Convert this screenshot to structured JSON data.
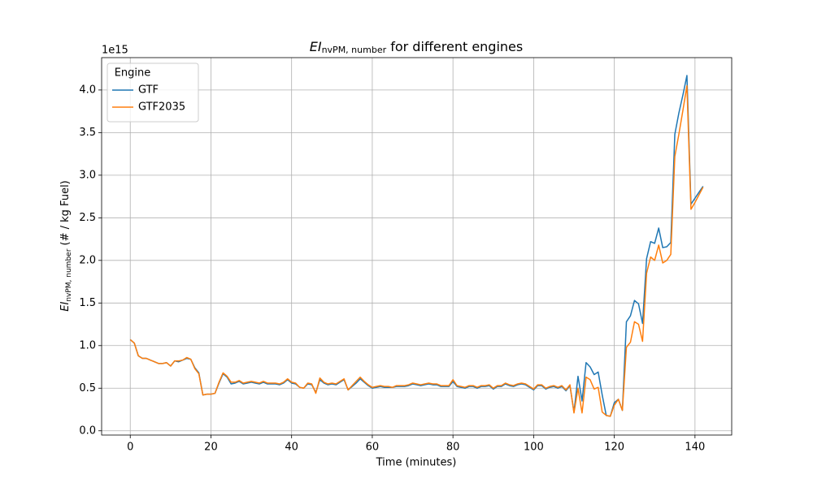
{
  "chart_data": {
    "type": "line",
    "title": {
      "main": "EI",
      "sub": "nvPM, number",
      "rest": " for different engines"
    },
    "ylabel": {
      "main": "EI",
      "sub": "nvPM, number",
      "rest": " (# / kg Fuel)"
    },
    "xlabel": "Time (minutes)",
    "y_offset_label": "1e15",
    "legend_title": "Engine",
    "legend_loc": "upper left",
    "grid": true,
    "x": [
      0,
      1,
      2,
      3,
      4,
      5,
      6,
      7,
      8,
      9,
      10,
      11,
      12,
      13,
      14,
      15,
      16,
      17,
      18,
      19,
      20,
      21,
      22,
      23,
      24,
      25,
      26,
      27,
      28,
      29,
      30,
      31,
      32,
      33,
      34,
      35,
      36,
      37,
      38,
      39,
      40,
      41,
      42,
      43,
      44,
      45,
      46,
      47,
      48,
      49,
      50,
      51,
      52,
      53,
      54,
      55,
      56,
      57,
      58,
      59,
      60,
      61,
      62,
      63,
      64,
      65,
      66,
      67,
      68,
      69,
      70,
      71,
      72,
      73,
      74,
      75,
      76,
      77,
      78,
      79,
      80,
      81,
      82,
      83,
      84,
      85,
      86,
      87,
      88,
      89,
      90,
      91,
      92,
      93,
      94,
      95,
      96,
      97,
      98,
      99,
      100,
      101,
      102,
      103,
      104,
      105,
      106,
      107,
      108,
      109,
      110,
      111,
      112,
      113,
      114,
      115,
      116,
      117,
      118,
      119,
      120,
      121,
      122,
      123,
      124,
      125,
      126,
      127,
      128,
      129,
      130,
      131,
      132,
      133,
      134,
      135,
      136,
      137,
      138,
      139,
      140,
      141,
      142
    ],
    "series": [
      {
        "name": "GTF",
        "color": "#1f77b4",
        "values": [
          1.07,
          1.03,
          0.88,
          0.85,
          0.85,
          0.83,
          0.81,
          0.79,
          0.79,
          0.8,
          0.76,
          0.82,
          0.81,
          0.83,
          0.85,
          0.84,
          0.74,
          0.68,
          0.42,
          0.43,
          0.43,
          0.44,
          0.56,
          0.67,
          0.63,
          0.55,
          0.56,
          0.58,
          0.55,
          0.56,
          0.57,
          0.56,
          0.55,
          0.57,
          0.55,
          0.55,
          0.55,
          0.54,
          0.56,
          0.6,
          0.56,
          0.55,
          0.51,
          0.5,
          0.55,
          0.54,
          0.45,
          0.6,
          0.56,
          0.54,
          0.55,
          0.54,
          0.57,
          0.6,
          0.48,
          0.52,
          0.56,
          0.61,
          0.57,
          0.53,
          0.5,
          0.51,
          0.52,
          0.51,
          0.51,
          0.51,
          0.52,
          0.52,
          0.52,
          0.53,
          0.55,
          0.54,
          0.53,
          0.54,
          0.55,
          0.54,
          0.54,
          0.52,
          0.52,
          0.52,
          0.58,
          0.52,
          0.51,
          0.5,
          0.52,
          0.52,
          0.5,
          0.52,
          0.52,
          0.53,
          0.49,
          0.52,
          0.52,
          0.55,
          0.53,
          0.52,
          0.54,
          0.55,
          0.54,
          0.51,
          0.48,
          0.53,
          0.53,
          0.49,
          0.51,
          0.52,
          0.5,
          0.52,
          0.47,
          0.53,
          0.22,
          0.64,
          0.35,
          0.8,
          0.75,
          0.66,
          0.69,
          0.42,
          0.18,
          0.17,
          0.33,
          0.37,
          0.24,
          1.28,
          1.35,
          1.53,
          1.49,
          1.26,
          2.02,
          2.22,
          2.2,
          2.38,
          2.15,
          2.16,
          2.21,
          3.48,
          3.73,
          3.94,
          4.17,
          2.66,
          2.73,
          2.8,
          2.87
        ]
      },
      {
        "name": "GTF2035",
        "color": "#ff7f0e",
        "values": [
          1.07,
          1.03,
          0.88,
          0.85,
          0.85,
          0.83,
          0.81,
          0.79,
          0.79,
          0.8,
          0.76,
          0.82,
          0.82,
          0.83,
          0.86,
          0.84,
          0.73,
          0.67,
          0.42,
          0.43,
          0.43,
          0.44,
          0.57,
          0.68,
          0.64,
          0.57,
          0.57,
          0.59,
          0.56,
          0.57,
          0.58,
          0.57,
          0.56,
          0.58,
          0.56,
          0.56,
          0.56,
          0.55,
          0.57,
          0.61,
          0.57,
          0.56,
          0.51,
          0.5,
          0.56,
          0.55,
          0.44,
          0.62,
          0.57,
          0.55,
          0.56,
          0.55,
          0.58,
          0.61,
          0.48,
          0.53,
          0.58,
          0.63,
          0.58,
          0.54,
          0.51,
          0.52,
          0.53,
          0.52,
          0.52,
          0.51,
          0.53,
          0.53,
          0.53,
          0.54,
          0.56,
          0.55,
          0.54,
          0.55,
          0.56,
          0.55,
          0.55,
          0.53,
          0.53,
          0.53,
          0.6,
          0.53,
          0.52,
          0.51,
          0.53,
          0.53,
          0.51,
          0.53,
          0.53,
          0.54,
          0.5,
          0.53,
          0.53,
          0.56,
          0.54,
          0.53,
          0.55,
          0.56,
          0.55,
          0.52,
          0.49,
          0.54,
          0.54,
          0.5,
          0.52,
          0.53,
          0.51,
          0.53,
          0.48,
          0.54,
          0.21,
          0.5,
          0.21,
          0.63,
          0.6,
          0.49,
          0.51,
          0.22,
          0.18,
          0.17,
          0.3,
          0.37,
          0.24,
          0.98,
          1.04,
          1.28,
          1.25,
          1.05,
          1.85,
          2.04,
          2.0,
          2.18,
          1.97,
          2.0,
          2.07,
          3.22,
          3.48,
          3.76,
          4.05,
          2.6,
          2.68,
          2.77,
          2.86
        ]
      }
    ],
    "xlim": [
      -7.1,
      149.1
    ],
    "xticks": [
      0,
      20,
      40,
      60,
      80,
      100,
      120,
      140
    ],
    "ylim": [
      -0.05,
      4.38
    ],
    "yticks": [
      {
        "value": 0,
        "label": "0.0"
      },
      {
        "value": 0.5,
        "label": "0.5"
      },
      {
        "value": 1,
        "label": "1.0"
      },
      {
        "value": 1.5,
        "label": "1.5"
      },
      {
        "value": 2,
        "label": "2.0"
      },
      {
        "value": 2.5,
        "label": "2.5"
      },
      {
        "value": 3,
        "label": "3.0"
      },
      {
        "value": 3.5,
        "label": "3.5"
      },
      {
        "value": 4,
        "label": "4.0"
      }
    ]
  }
}
